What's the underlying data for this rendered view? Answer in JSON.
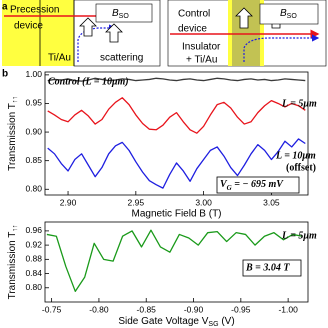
{
  "panel_labels": [
    "a",
    "b"
  ],
  "panel_a": {
    "left": {
      "title_line1": "Precession",
      "title_line2": "device",
      "field": {
        "text": "B",
        "subscript": "SO"
      },
      "metal": "Ti/Au",
      "note": "scattering"
    },
    "right": {
      "title_line1": "Control",
      "title_line2": "device",
      "field": {
        "text": "B",
        "subscript": "SO"
      },
      "metal_line1": "Insulator",
      "metal_line2": "+ Ti/Au"
    }
  },
  "chart_data": [
    {
      "type": "line",
      "xlabel": "Magnetic Field B (T)",
      "ylabel": {
        "text": "Transmission T",
        "subscript": "↑↑"
      },
      "xlim": [
        2.883,
        3.077
      ],
      "ylim": [
        0.79,
        1.005
      ],
      "xticks": [
        {
          "value": 2.9,
          "label": "2.90"
        },
        2.95,
        {
          "value": 3.0,
          "label": "3.00"
        },
        3.05
      ],
      "yticks": [
        {
          "value": 0.8,
          "label": "0.80"
        },
        0.85,
        {
          "value": 0.9,
          "label": "0.90"
        },
        0.95,
        {
          "value": 1.0,
          "label": "1.00"
        }
      ],
      "x": [
        2.885,
        2.89,
        2.895,
        2.9,
        2.905,
        2.91,
        2.915,
        2.92,
        2.925,
        2.93,
        2.935,
        2.94,
        2.945,
        2.95,
        2.955,
        2.96,
        2.965,
        2.97,
        2.975,
        2.98,
        2.985,
        2.99,
        2.995,
        3.0,
        3.005,
        3.01,
        3.015,
        3.02,
        3.025,
        3.03,
        3.035,
        3.04,
        3.045,
        3.05,
        3.055,
        3.06,
        3.065,
        3.07,
        3.075
      ],
      "series": [
        {
          "name": "Control (L = 10μm)",
          "color": "#3a3a3a",
          "values": [
            0.99,
            0.992,
            0.991,
            0.993,
            0.99,
            0.989,
            0.991,
            0.994,
            0.992,
            0.99,
            0.991,
            0.993,
            0.992,
            0.99,
            0.991,
            0.992,
            0.994,
            0.993,
            0.991,
            0.99,
            0.992,
            0.993,
            0.991,
            0.99,
            0.992,
            0.994,
            0.993,
            0.991,
            0.99,
            0.992,
            0.993,
            0.991,
            0.992,
            0.99,
            0.991,
            0.993,
            0.992,
            0.991,
            0.99
          ]
        },
        {
          "name": "L = 5μm",
          "color": "#e8141c",
          "values": [
            0.937,
            0.93,
            0.922,
            0.918,
            0.93,
            0.938,
            0.928,
            0.914,
            0.922,
            0.94,
            0.952,
            0.96,
            0.948,
            0.93,
            0.915,
            0.905,
            0.904,
            0.912,
            0.926,
            0.934,
            0.918,
            0.904,
            0.898,
            0.91,
            0.93,
            0.948,
            0.952,
            0.942,
            0.926,
            0.914,
            0.918,
            0.934,
            0.946,
            0.955,
            0.95,
            0.944,
            0.95,
            0.946,
            0.938
          ]
        },
        {
          "name": "L = 10μm",
          "color": "#1f1fe0",
          "values": [
            0.872,
            0.862,
            0.845,
            0.832,
            0.852,
            0.862,
            0.842,
            0.822,
            0.838,
            0.862,
            0.876,
            0.882,
            0.868,
            0.848,
            0.83,
            0.815,
            0.808,
            0.802,
            0.826,
            0.846,
            0.832,
            0.814,
            0.836,
            0.852,
            0.868,
            0.874,
            0.858,
            0.838,
            0.824,
            0.842,
            0.862,
            0.878,
            0.868,
            0.852,
            0.866,
            0.884,
            0.874,
            0.888,
            0.88
          ]
        }
      ],
      "note": "(offset)",
      "condition": {
        "text": "V",
        "subscript": "G",
        "suffix": " = − 695 mV"
      }
    },
    {
      "type": "line",
      "xlabel": {
        "text": "Side Gate Voltage V",
        "subscript": "SG",
        "suffix": " (V)"
      },
      "ylabel": {
        "text": "Transmission T",
        "subscript": "↑↑"
      },
      "xlim": [
        -0.743,
        -1.021
      ],
      "ylim": [
        0.76,
        0.985
      ],
      "xticks": [
        -0.75,
        {
          "value": -0.8,
          "label": "-0.80"
        },
        -0.85,
        {
          "value": -0.9,
          "label": "-0.90"
        },
        -0.95,
        {
          "value": -1.0,
          "label": "-1.00"
        }
      ],
      "yticks": [
        {
          "value": 0.8,
          "label": "0.80"
        },
        0.84,
        0.88,
        0.92,
        0.96
      ],
      "x": [
        -0.745,
        -0.755,
        -0.765,
        -0.775,
        -0.785,
        -0.795,
        -0.805,
        -0.815,
        -0.825,
        -0.835,
        -0.845,
        -0.855,
        -0.865,
        -0.875,
        -0.885,
        -0.895,
        -0.905,
        -0.915,
        -0.925,
        -0.935,
        -0.945,
        -0.955,
        -0.965,
        -0.975,
        -0.985,
        -0.995,
        -1.005,
        -1.015
      ],
      "series": [
        {
          "name": "L = 5μm",
          "color": "#1a9a1a",
          "values": [
            0.95,
            0.945,
            0.86,
            0.79,
            0.83,
            0.925,
            0.88,
            0.875,
            0.945,
            0.96,
            0.915,
            0.962,
            0.915,
            0.9,
            0.95,
            0.94,
            0.92,
            0.955,
            0.958,
            0.93,
            0.955,
            0.95,
            0.92,
            0.945,
            0.955,
            0.935,
            0.95,
            0.945
          ]
        }
      ],
      "condition": "B = 3.04 T"
    }
  ]
}
